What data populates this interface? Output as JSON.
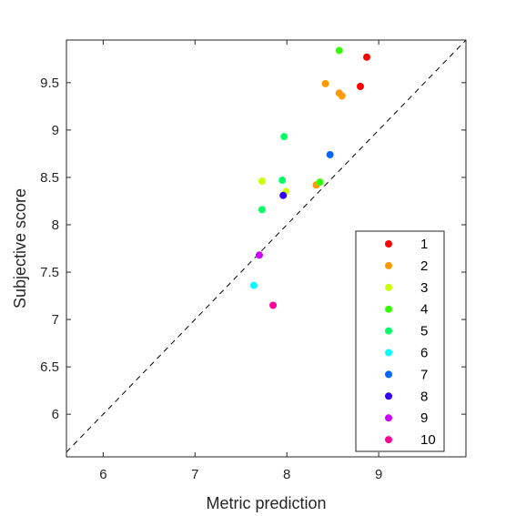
{
  "chart_data": {
    "type": "scatter",
    "xlabel": "Metric prediction",
    "ylabel": "Subjective score",
    "xlim": [
      5.6,
      9.95
    ],
    "ylim": [
      5.55,
      9.95
    ],
    "x_ticks": [
      6,
      7,
      8,
      9
    ],
    "y_ticks": [
      6,
      6.5,
      7,
      7.5,
      8,
      8.5,
      9,
      9.5
    ],
    "x_tick_labels": [
      "6",
      "7",
      "8",
      "9"
    ],
    "y_tick_labels": [
      "6",
      "6.5",
      "7",
      "7.5",
      "8",
      "8.5",
      "9",
      "9.5"
    ],
    "reference_line": {
      "style": "dashed",
      "from": [
        5.6,
        5.6
      ],
      "to": [
        9.95,
        9.95
      ]
    },
    "grid": false,
    "legend_position": "bottom-right",
    "series": [
      {
        "name": "1",
        "color": "#ff0000",
        "points": [
          [
            8.87,
            9.77
          ],
          [
            8.8,
            9.46
          ]
        ]
      },
      {
        "name": "2",
        "color": "#ff9900",
        "points": [
          [
            8.42,
            9.49
          ],
          [
            8.57,
            9.39
          ],
          [
            8.6,
            9.36
          ],
          [
            8.32,
            8.42
          ]
        ]
      },
      {
        "name": "3",
        "color": "#ccff00",
        "points": [
          [
            7.73,
            8.46
          ],
          [
            7.99,
            8.35
          ]
        ]
      },
      {
        "name": "4",
        "color": "#33ff00",
        "points": [
          [
            8.57,
            9.84
          ],
          [
            8.36,
            8.45
          ]
        ]
      },
      {
        "name": "5",
        "color": "#00ff66",
        "points": [
          [
            7.97,
            8.93
          ],
          [
            7.95,
            8.47
          ],
          [
            7.73,
            8.16
          ]
        ]
      },
      {
        "name": "6",
        "color": "#00ffff",
        "points": [
          [
            7.64,
            7.36
          ]
        ]
      },
      {
        "name": "7",
        "color": "#0066ff",
        "points": [
          [
            8.47,
            8.74
          ]
        ]
      },
      {
        "name": "8",
        "color": "#3300ff",
        "points": [
          [
            7.96,
            8.31
          ]
        ]
      },
      {
        "name": "9",
        "color": "#cc00ff",
        "points": [
          [
            7.7,
            7.68
          ]
        ]
      },
      {
        "name": "10",
        "color": "#ff0099",
        "points": [
          [
            7.85,
            7.15
          ]
        ]
      }
    ]
  }
}
